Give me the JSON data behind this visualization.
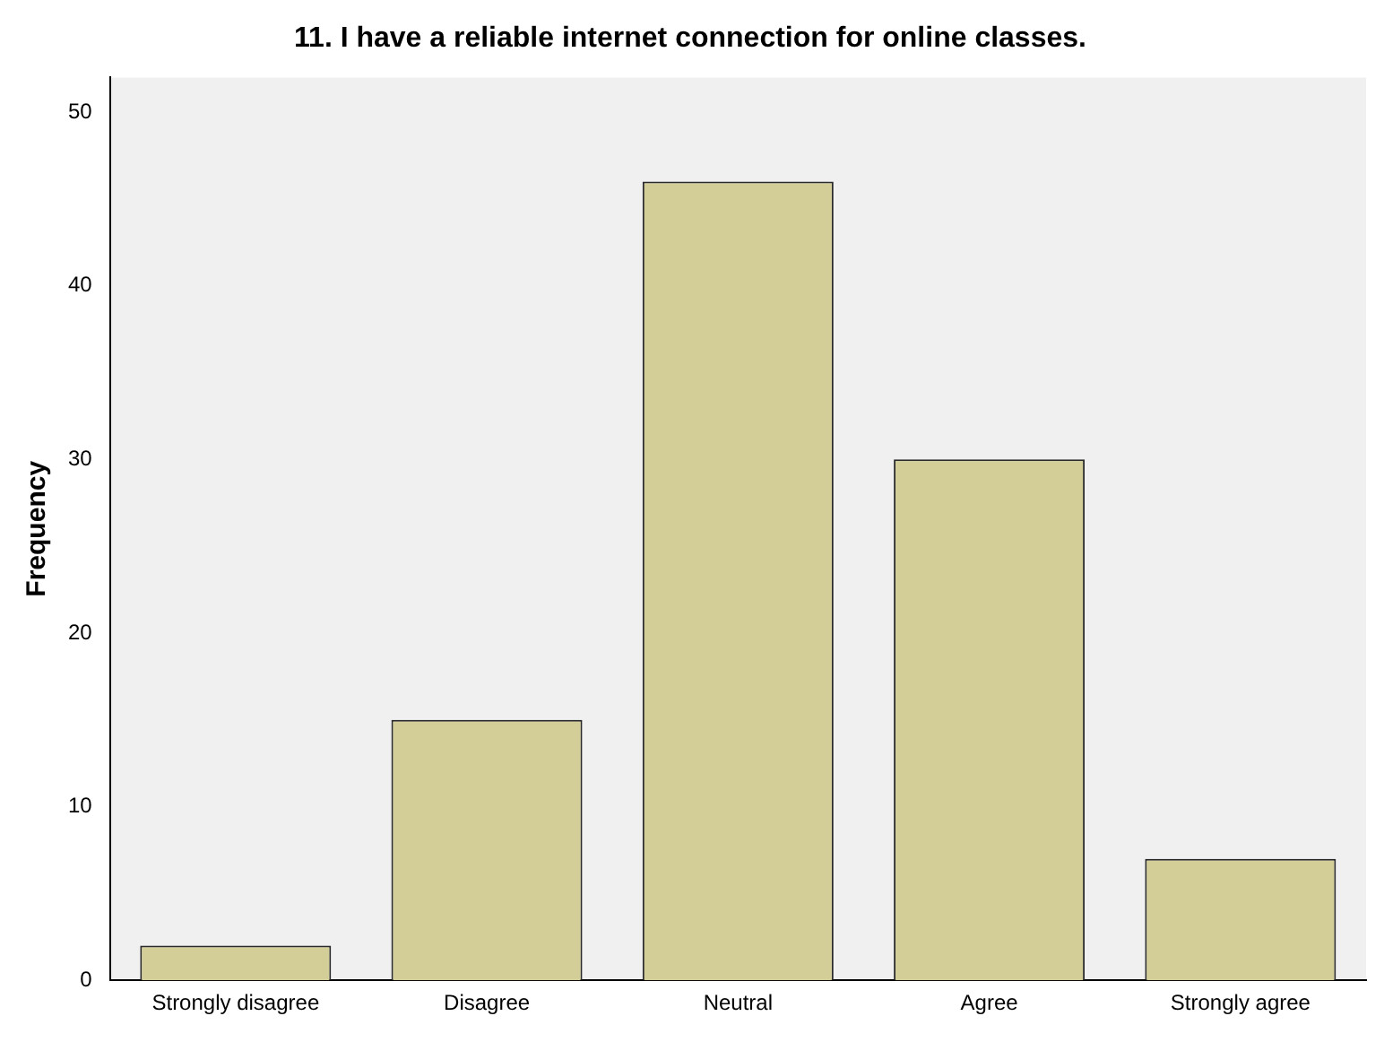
{
  "chart_data": {
    "type": "bar",
    "title": "11. I have a reliable internet connection for online classes.",
    "ylabel": "Frequency",
    "categories": [
      "Strongly disagree",
      "Disagree",
      "Neutral",
      "Agree",
      "Strongly agree"
    ],
    "values": [
      2,
      15,
      46,
      30,
      7
    ],
    "color": "#d3ce97",
    "ylim": [
      0,
      52
    ],
    "yticks": [
      0,
      10,
      20,
      30,
      40,
      50
    ],
    "grid": false,
    "legend": false
  }
}
